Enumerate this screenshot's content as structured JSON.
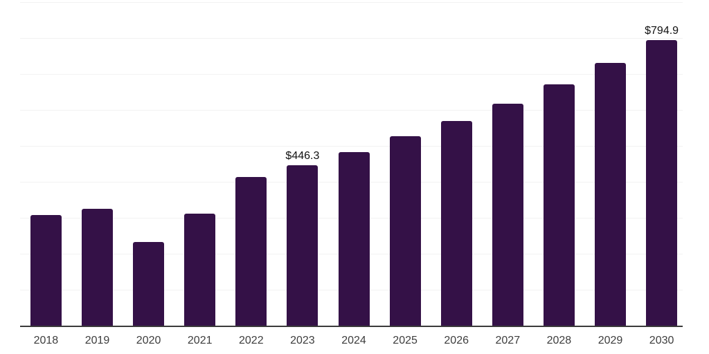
{
  "chart_data": {
    "type": "bar",
    "title": "",
    "xlabel": "",
    "ylabel": "",
    "categories": [
      "2018",
      "2019",
      "2020",
      "2021",
      "2022",
      "2023",
      "2024",
      "2025",
      "2026",
      "2027",
      "2028",
      "2029",
      "2030"
    ],
    "values": [
      308,
      325,
      233,
      312,
      413,
      446.3,
      482,
      526,
      570,
      617,
      671,
      730,
      794.9
    ],
    "data_labels": [
      {
        "index": 5,
        "text": "$446.3"
      },
      {
        "index": 12,
        "text": "$794.9"
      }
    ],
    "ylim": [
      0,
      900
    ],
    "gridline_step": 100,
    "grid": true,
    "legend": "none",
    "bar_color": "#341147",
    "axis_color": "#3a3a3a",
    "gridline_color": "#f2f2f2",
    "tick_label_color": "#3d3d3d",
    "data_label_color": "#111111",
    "background_color": "#ffffff"
  }
}
